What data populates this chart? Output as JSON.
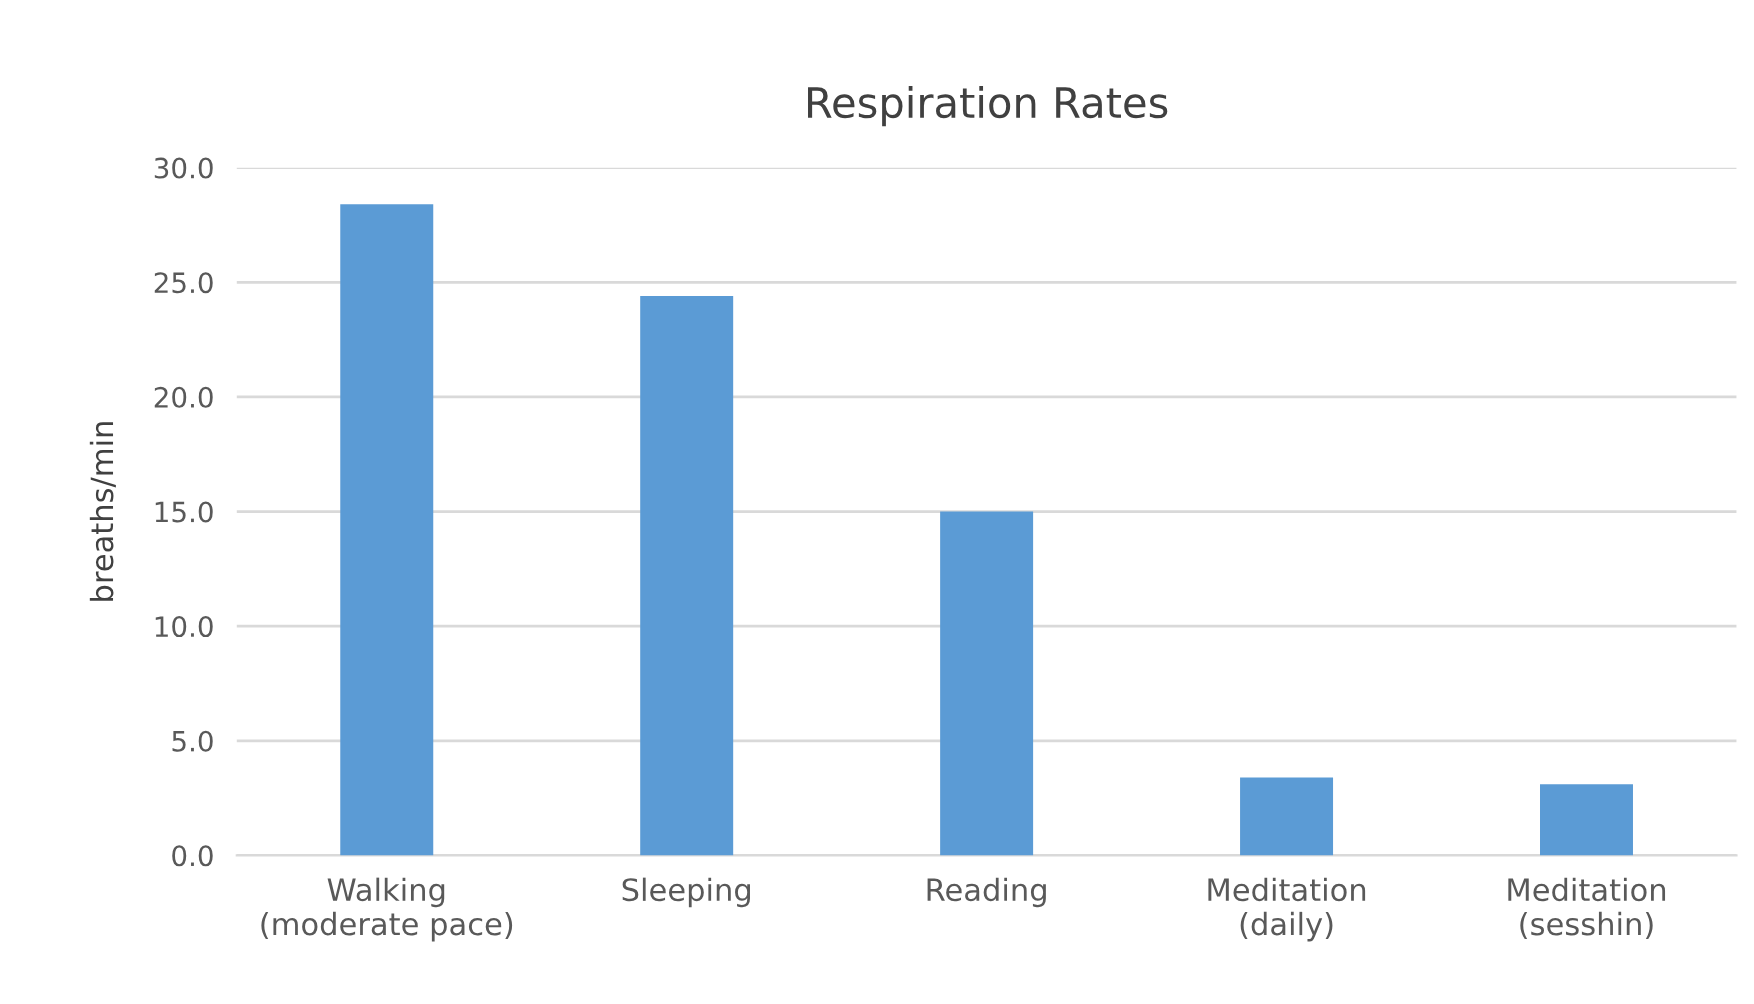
{
  "chart_data": {
    "type": "bar",
    "title": "Respiration Rates",
    "ylabel": "breaths/min",
    "categories": [
      "Walking\n(moderate pace)",
      "Sleeping",
      "Reading",
      "Meditation\n(daily)",
      "Meditation\n(sesshin)"
    ],
    "values": [
      28.4,
      24.4,
      15.0,
      3.4,
      3.1
    ],
    "color": "#5b9bd5",
    "ylim": [
      0,
      30
    ],
    "yticks": [
      {
        "value": 0,
        "label": "0.0"
      },
      {
        "value": 5,
        "label": "5.0"
      },
      {
        "value": 10,
        "label": "10.0"
      },
      {
        "value": 15,
        "label": "15.0"
      },
      {
        "value": 20,
        "label": "20.0"
      },
      {
        "value": 25,
        "label": "25.0"
      },
      {
        "value": 30,
        "label": "30.0"
      }
    ],
    "grid": "y"
  }
}
